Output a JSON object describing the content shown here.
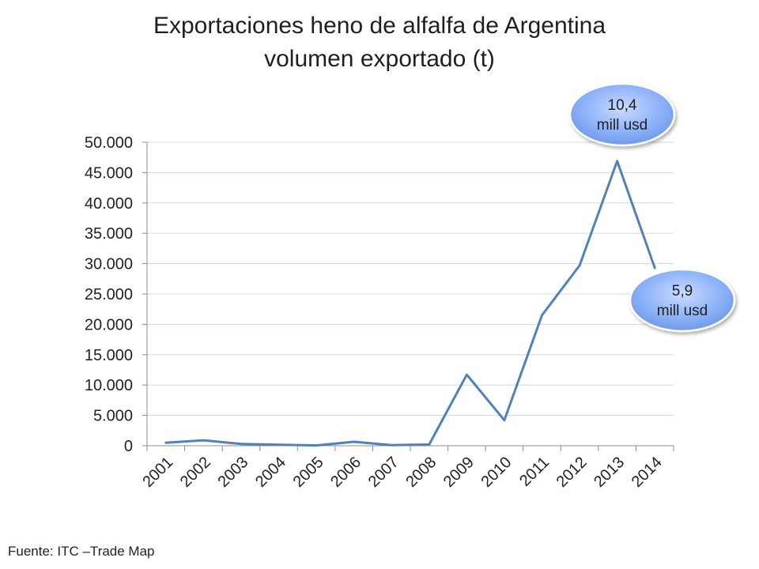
{
  "title_line1": "Exportaciones heno de alfalfa de Argentina",
  "title_line2": "volumen exportado (t)",
  "source": "Fuente: ITC –Trade Map",
  "chart_data": {
    "type": "line",
    "title": "Exportaciones heno de alfalfa de Argentina volumen exportado (t)",
    "categories": [
      "2001",
      "2002",
      "2003",
      "2004",
      "2005",
      "2006",
      "2007",
      "2008",
      "2009",
      "2010",
      "2011",
      "2012",
      "2013",
      "2014"
    ],
    "series": [
      {
        "values": [
          500,
          900,
          300,
          150,
          50,
          650,
          100,
          200,
          11700,
          4200,
          21500,
          29700,
          46900,
          29300
        ],
        "color": "#4f81bd"
      }
    ],
    "ylim": [
      0,
      50000
    ],
    "yticks": [
      "0",
      "5.000",
      "10.000",
      "15.000",
      "20.000",
      "25.000",
      "30.000",
      "35.000",
      "40.000",
      "45.000",
      "50.000"
    ],
    "grid": true,
    "annotations": [
      {
        "category": "2013",
        "line1": "10,4",
        "line2": "mill usd"
      },
      {
        "category": "2014",
        "line1": "5,9",
        "line2": "mill usd"
      }
    ]
  }
}
